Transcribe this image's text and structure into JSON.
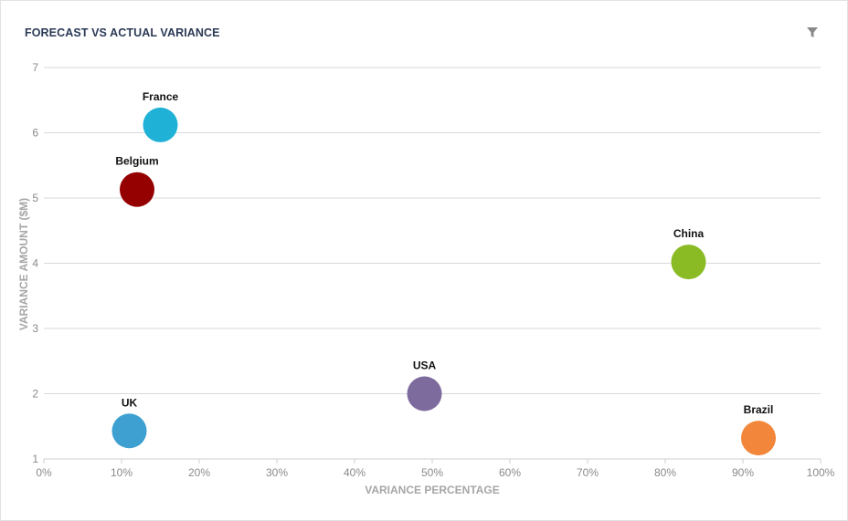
{
  "header": {
    "title": "FORECAST VS ACTUAL VARIANCE",
    "filter_icon": "filter-icon"
  },
  "chart_data": {
    "type": "scatter",
    "title": "FORECAST VS ACTUAL VARIANCE",
    "xlabel": "VARIANCE PERCENTAGE",
    "ylabel": "VARIANCE AMOUNT ($M)",
    "xlim": [
      0,
      100
    ],
    "ylim": [
      1,
      7
    ],
    "x_ticks": [
      "0%",
      "10%",
      "20%",
      "30%",
      "40%",
      "50%",
      "60%",
      "70%",
      "80%",
      "90%",
      "100%"
    ],
    "y_ticks": [
      "1",
      "2",
      "3",
      "4",
      "5",
      "6",
      "7"
    ],
    "grid": true,
    "points": [
      {
        "label": "France",
        "x": 15,
        "y": 6.12,
        "color": "#1fb1d6"
      },
      {
        "label": "Belgium",
        "x": 12,
        "y": 5.13,
        "color": "#950000"
      },
      {
        "label": "China",
        "x": 83,
        "y": 4.02,
        "color": "#8abb25"
      },
      {
        "label": "USA",
        "x": 49,
        "y": 2.0,
        "color": "#7e6b9e"
      },
      {
        "label": "UK",
        "x": 11,
        "y": 1.43,
        "color": "#3da0d1"
      },
      {
        "label": "Brazil",
        "x": 92,
        "y": 1.32,
        "color": "#f2873b"
      }
    ]
  }
}
